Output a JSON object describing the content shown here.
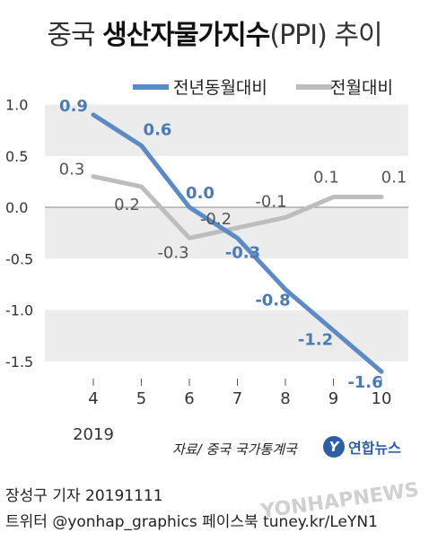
{
  "title": {
    "prefix": "중국 ",
    "bold": "생산자물가지수",
    "suffix": "(PPI) 추이"
  },
  "source": "자료/ 중국 국가통계국",
  "logo": {
    "mark": "Y",
    "text": "연합뉴스"
  },
  "credits": {
    "line1": "장성구 기자   20191111",
    "line2": "트위터 @yonhap_graphics  페이스북 tuney.kr/LeYN1"
  },
  "watermark": "YONHAPNEWS",
  "chart_data": {
    "type": "line",
    "title": "중국 생산자물가지수(PPI) 추이",
    "categories": [
      "4",
      "5",
      "6",
      "7",
      "8",
      "9",
      "10"
    ],
    "year_label": "2019",
    "ylim": [
      -1.75,
      1.0
    ],
    "yticks": [
      "1.0",
      "0.5",
      "0.0",
      "-0.5",
      "-1.0",
      "-1.5"
    ],
    "ytick_values": [
      1.0,
      0.5,
      0.0,
      -0.5,
      -1.0,
      -1.5
    ],
    "legend_position": "top-right",
    "series": [
      {
        "name": "전년동월대비",
        "color": "#5b8bc6",
        "values": [
          0.9,
          0.6,
          0.0,
          -0.3,
          -0.8,
          -1.2,
          -1.6
        ],
        "labels": [
          "0.9",
          "0.6",
          "0.0",
          "-0.3",
          "-0.8",
          "-1.2",
          "-1.6"
        ]
      },
      {
        "name": "전월대비",
        "color": "#bdbdbd",
        "values": [
          0.3,
          0.2,
          -0.3,
          -0.2,
          -0.1,
          0.1,
          0.1
        ],
        "labels": [
          "0.3",
          "0.2",
          "-0.3",
          "-0.2",
          "-0.1",
          "0.1",
          "0.1"
        ]
      }
    ]
  }
}
